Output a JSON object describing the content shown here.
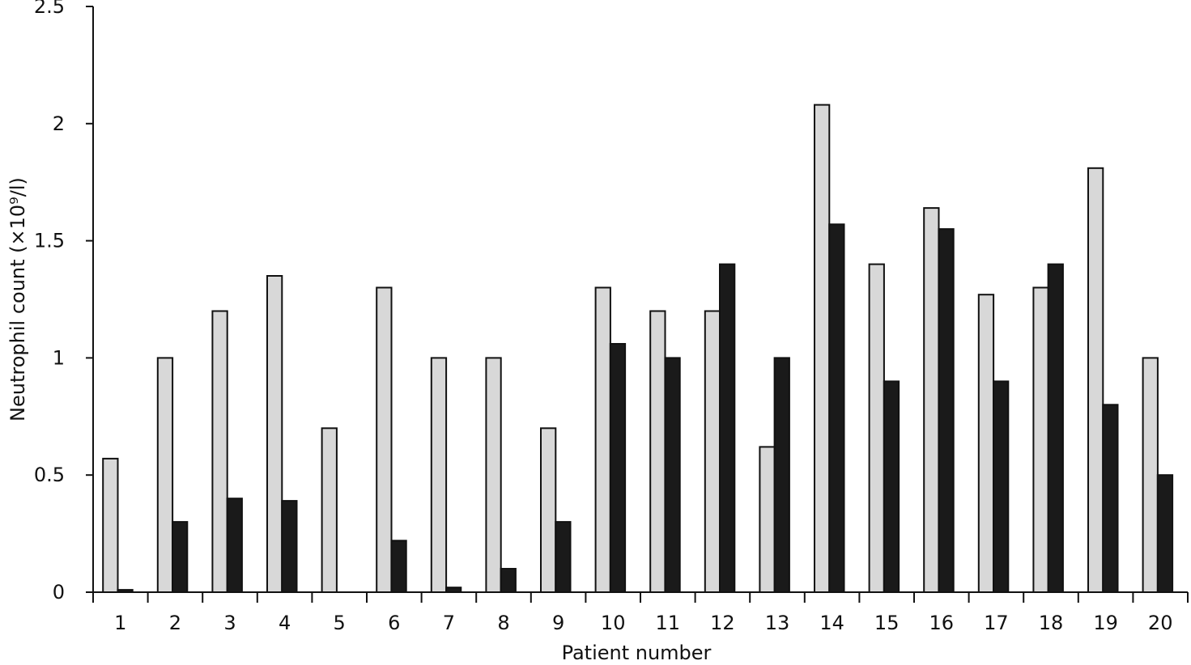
{
  "chart_data": {
    "type": "bar",
    "title": "",
    "xlabel": "Patient number",
    "ylabel": "Neutrophil count (×10⁹/l)",
    "ylim": [
      0,
      2.5
    ],
    "yticks": [
      "0",
      "0.5",
      "1",
      "1.5",
      "2",
      "2.5"
    ],
    "ytick_values": [
      0,
      0.5,
      1,
      1.5,
      2,
      2.5
    ],
    "categories": [
      "1",
      "2",
      "3",
      "4",
      "5",
      "6",
      "7",
      "8",
      "9",
      "10",
      "11",
      "12",
      "13",
      "14",
      "15",
      "16",
      "17",
      "18",
      "19",
      "20"
    ],
    "series": [
      {
        "color": "#d8d8d8",
        "values": [
          0.57,
          1.0,
          1.2,
          1.35,
          0.7,
          1.3,
          1.0,
          1.0,
          0.7,
          1.3,
          1.2,
          1.2,
          0.62,
          2.08,
          1.4,
          1.64,
          1.27,
          1.3,
          1.81,
          1.0
        ]
      },
      {
        "color": "#1a1a1a",
        "values": [
          0.01,
          0.3,
          0.4,
          0.39,
          0.0,
          0.22,
          0.02,
          0.1,
          0.3,
          1.06,
          1.0,
          1.4,
          1.0,
          1.57,
          0.9,
          1.55,
          0.9,
          1.4,
          0.8,
          0.5
        ]
      }
    ],
    "grid": false,
    "legend": "none"
  }
}
